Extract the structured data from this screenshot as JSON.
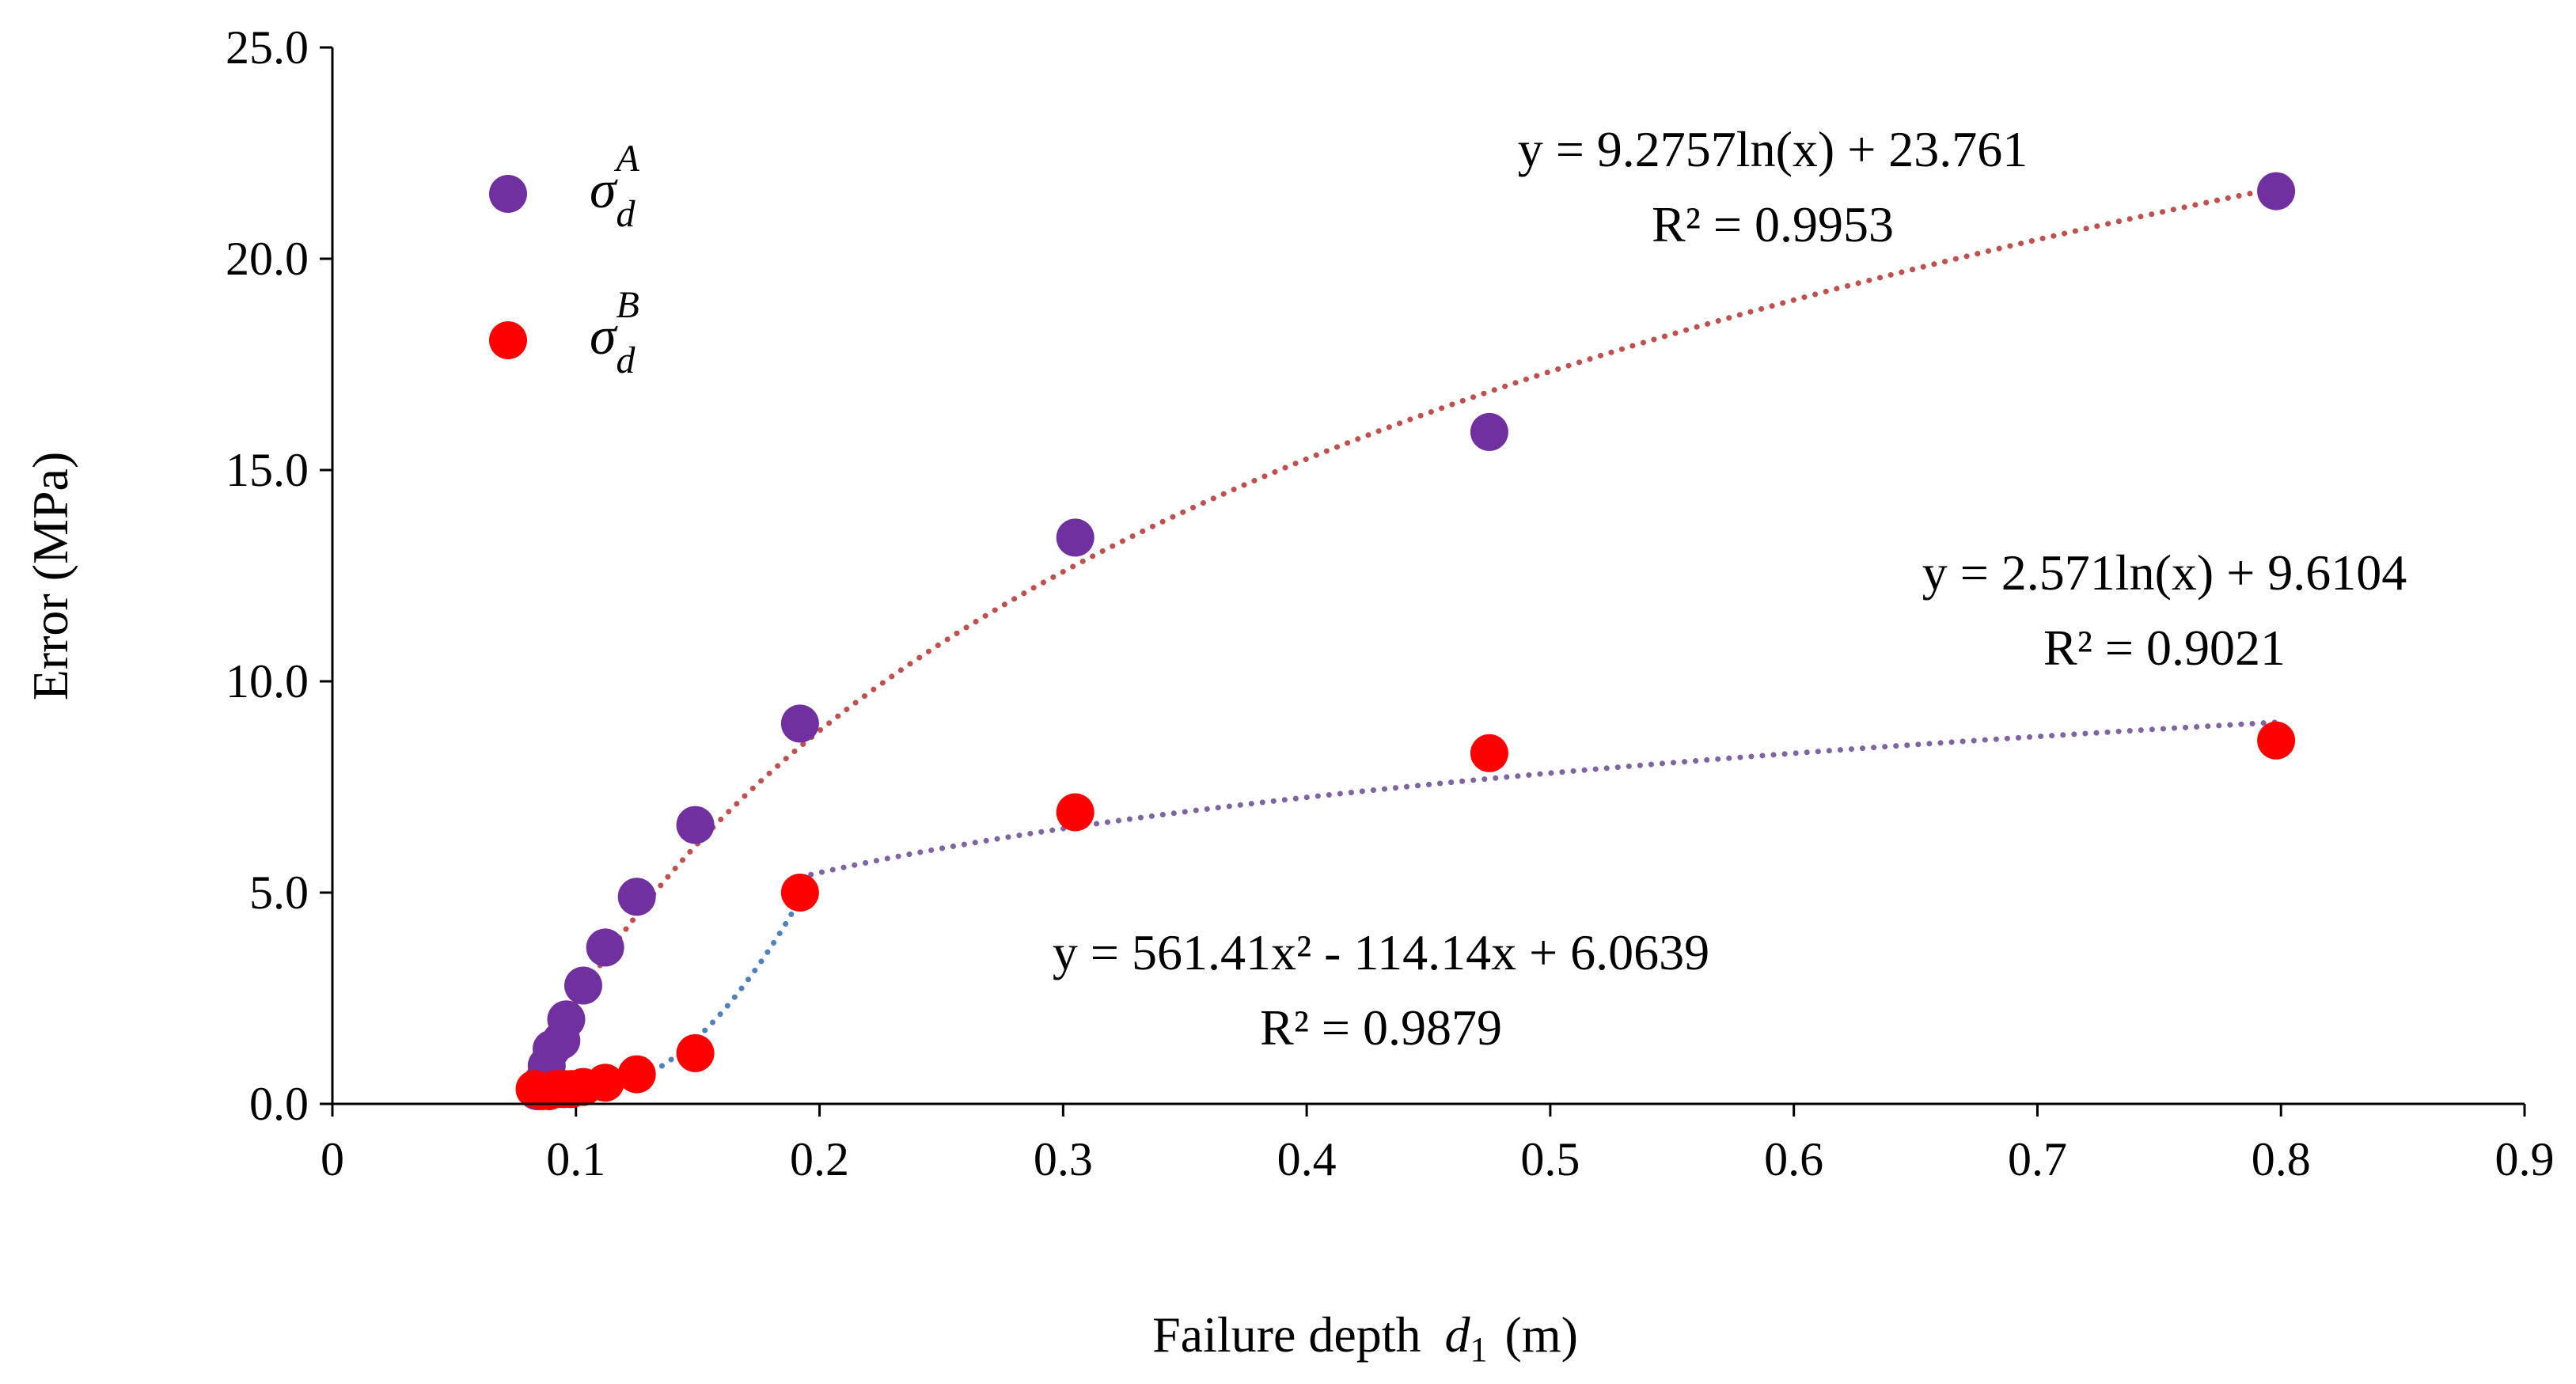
{
  "chart_data": {
    "type": "scatter",
    "title": "",
    "xlabel": "Failure depth",
    "xlabel_symbol": "d",
    "xlabel_subscript": "1",
    "xlabel_unit": "(m)",
    "ylabel": "Error (MPa)",
    "xlim": [
      0,
      0.9
    ],
    "ylim": [
      0,
      25
    ],
    "xticks": [
      "0",
      "0.1",
      "0.2",
      "0.3",
      "0.4",
      "0.5",
      "0.6",
      "0.7",
      "0.8",
      "0.9"
    ],
    "yticks": [
      "0.0",
      "5.0",
      "10.0",
      "15.0",
      "20.0",
      "25.0"
    ],
    "legend_position": "top-left",
    "series": [
      {
        "name": "σ_d^A",
        "legend_base": "σ",
        "legend_sub": "d",
        "legend_sup": "A",
        "color": "#7030a0",
        "x": [
          0.084,
          0.086,
          0.088,
          0.09,
          0.094,
          0.096,
          0.103,
          0.112,
          0.125,
          0.149,
          0.192,
          0.305,
          0.475,
          0.798
        ],
        "y": [
          0.3,
          0.5,
          0.9,
          1.3,
          1.5,
          2.0,
          2.8,
          3.7,
          4.9,
          6.6,
          9.0,
          13.4,
          15.9,
          21.6
        ]
      },
      {
        "name": "σ_d^B",
        "legend_base": "σ",
        "legend_sub": "d",
        "legend_sup": "B",
        "color": "#ff0000",
        "x": [
          0.083,
          0.086,
          0.089,
          0.092,
          0.095,
          0.098,
          0.103,
          0.112,
          0.125,
          0.149,
          0.192,
          0.305,
          0.475,
          0.798
        ],
        "y": [
          0.35,
          0.3,
          0.3,
          0.35,
          0.35,
          0.35,
          0.4,
          0.5,
          0.7,
          1.2,
          5.0,
          6.9,
          8.3,
          8.6
        ]
      }
    ],
    "trendlines": [
      {
        "label": "y = 9.2757ln(x) + 23.761",
        "r2_label": "R² = 0.9953",
        "type": "log",
        "a": 9.2757,
        "b": 23.761,
        "x_range": [
          0.084,
          0.798
        ],
        "color": "#c0504d"
      },
      {
        "label": "y = 2.571ln(x) + 9.6104",
        "r2_label": "R² = 0.9021",
        "type": "log",
        "a": 2.571,
        "b": 9.6104,
        "x_range": [
          0.192,
          0.798
        ],
        "color": "#8064a2"
      },
      {
        "label": "y = 561.41x² - 114.14x + 6.0639",
        "r2_label": "R² = 0.9879",
        "type": "poly2",
        "c2": 561.41,
        "c1": -114.14,
        "c0": 6.0639,
        "x_range": [
          0.083,
          0.192
        ],
        "color": "#4f81bd"
      }
    ]
  }
}
